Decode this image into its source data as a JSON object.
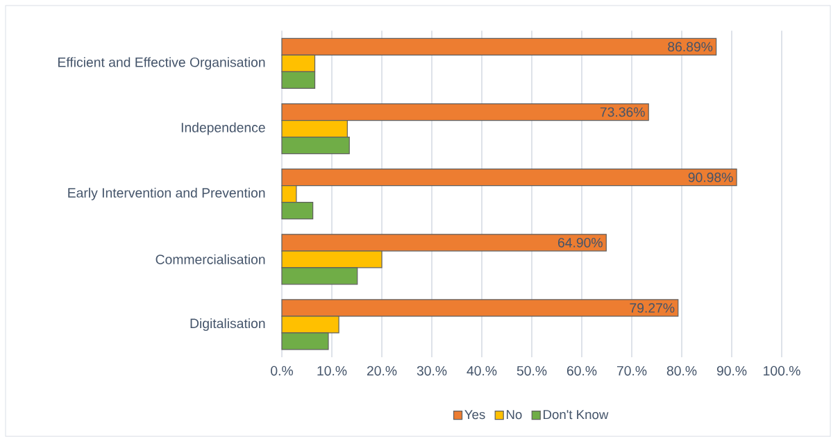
{
  "chart_data": {
    "type": "bar",
    "orientation": "horizontal",
    "categories": [
      "Efficient and Effective Organisation",
      "Independence",
      "Early Intervention and Prevention",
      "Commercialisation",
      "Digitalisation"
    ],
    "series": [
      {
        "name": "Yes",
        "color": "#ed7d31",
        "values": [
          86.89,
          73.36,
          90.98,
          64.9,
          79.27
        ],
        "value_labels": [
          "86.89%",
          "73.36%",
          "90.98%",
          "64.90%",
          "79.27%"
        ]
      },
      {
        "name": "No",
        "color": "#ffc000",
        "values": [
          6.6,
          13.1,
          2.9,
          20.0,
          11.4
        ]
      },
      {
        "name": "Don't Know",
        "color": "#70ad47",
        "values": [
          6.6,
          13.5,
          6.2,
          15.1,
          9.3
        ]
      }
    ],
    "xlim": [
      0,
      100
    ],
    "xticks": [
      {
        "value": 0,
        "label": "0.%"
      },
      {
        "value": 10,
        "label": "10.%"
      },
      {
        "value": 20,
        "label": "20.%"
      },
      {
        "value": 30,
        "label": "30.%"
      },
      {
        "value": 40,
        "label": "40.%"
      },
      {
        "value": 50,
        "label": "50.%"
      },
      {
        "value": 60,
        "label": "60.%"
      },
      {
        "value": 70,
        "label": "70.%"
      },
      {
        "value": 80,
        "label": "80.%"
      },
      {
        "value": 90,
        "label": "90.%"
      },
      {
        "value": 100,
        "label": "100.%"
      }
    ],
    "grid": "x",
    "legend": "bottom"
  }
}
